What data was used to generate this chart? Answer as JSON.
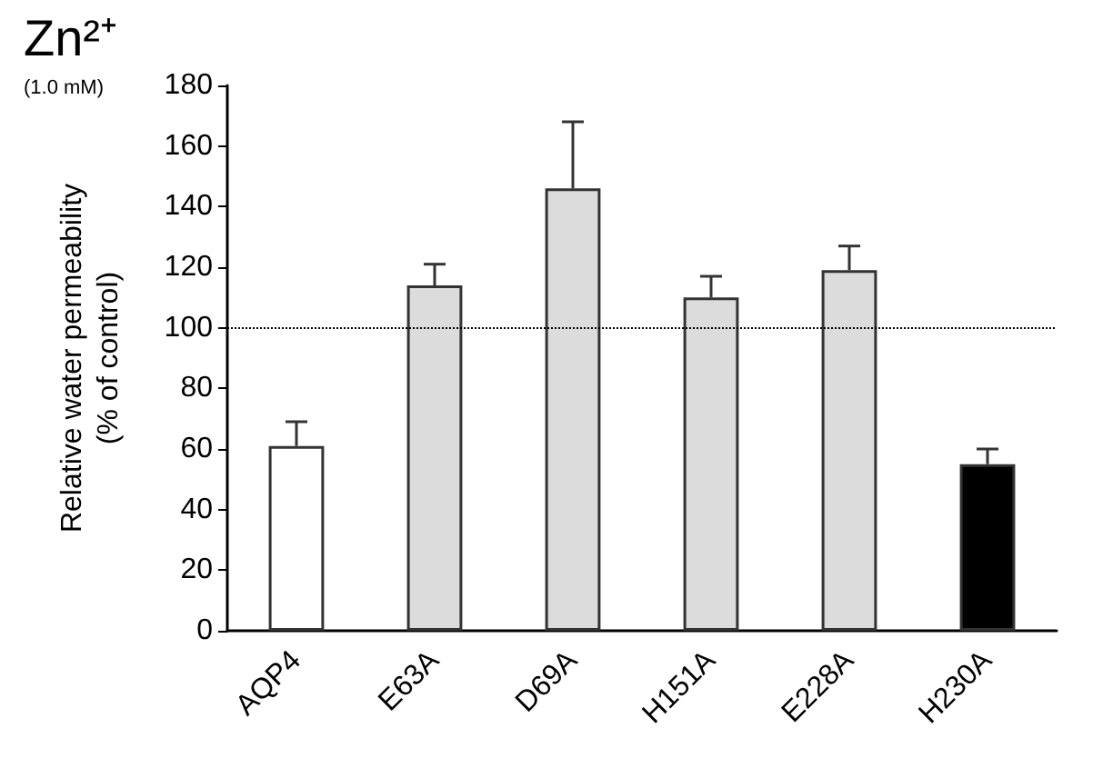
{
  "chart_data": {
    "type": "bar",
    "title": "Zn²⁺",
    "subtitle": "(1.0 mM)",
    "ylabel": "Relative water permeability\n(% of control)",
    "categories": [
      "AQP4",
      "E63A",
      "D69A",
      "H151A",
      "E228A",
      "H230A"
    ],
    "values": [
      61,
      114,
      146,
      110,
      119,
      55
    ],
    "colors": [
      "#ffffff",
      "#dcdcdc",
      "#dcdcdc",
      "#dcdcdc",
      "#dcdcdc",
      "#000000"
    ],
    "errors": [
      [
        61,
        69
      ],
      [
        114,
        121
      ],
      [
        146,
        168
      ],
      [
        110,
        117
      ],
      [
        119,
        127
      ],
      [
        55,
        60
      ]
    ],
    "ylim": [
      0,
      180
    ],
    "yticks": [
      0,
      20,
      40,
      60,
      80,
      100,
      120,
      140,
      160,
      180
    ],
    "grid": false,
    "ref_lines": [
      {
        "axis": "y",
        "value": 100,
        "line_style": "dotted",
        "color": "#000000"
      }
    ]
  }
}
